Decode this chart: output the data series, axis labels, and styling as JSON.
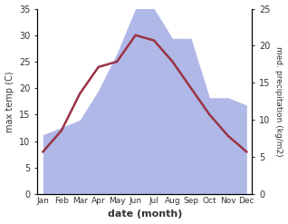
{
  "months": [
    "Jan",
    "Feb",
    "Mar",
    "Apr",
    "May",
    "Jun",
    "Jul",
    "Aug",
    "Sep",
    "Oct",
    "Nov",
    "Dec"
  ],
  "max_temp": [
    8,
    12,
    19,
    24,
    25,
    30,
    29,
    25,
    20,
    15,
    11,
    8
  ],
  "precipitation": [
    8,
    9,
    10,
    14,
    19,
    25,
    25,
    21,
    21,
    13,
    13,
    12
  ],
  "temp_color": "#993344",
  "precip_fill_color": "#b0b8e8",
  "temp_ylim": [
    0,
    35
  ],
  "precip_ylim": [
    0,
    25
  ],
  "temp_yticks": [
    0,
    5,
    10,
    15,
    20,
    25,
    30,
    35
  ],
  "precip_yticks": [
    0,
    5,
    10,
    15,
    20,
    25
  ],
  "xlabel": "date (month)",
  "ylabel_left": "max temp (C)",
  "ylabel_right": "med. precipitation (kg/m2)",
  "background_color": "#ffffff",
  "temp_linewidth": 1.8,
  "fill_alpha": 1.0
}
